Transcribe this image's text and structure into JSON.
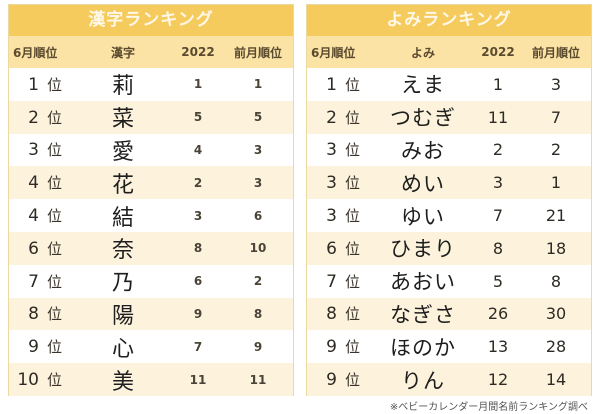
{
  "kanji_ranking": {
    "title": "漢字ランキング",
    "headers": [
      "6月順位",
      "漢字",
      "2022",
      "前月順位"
    ],
    "rows": [
      {
        "rank": "1",
        "unit": "位",
        "name": "莉",
        "y2022": "1",
        "prev": "1"
      },
      {
        "rank": "2",
        "unit": "位",
        "name": "菜",
        "y2022": "5",
        "prev": "5"
      },
      {
        "rank": "3",
        "unit": "位",
        "name": "愛",
        "y2022": "4",
        "prev": "3"
      },
      {
        "rank": "4",
        "unit": "位",
        "name": "花",
        "y2022": "2",
        "prev": "3"
      },
      {
        "rank": "4",
        "unit": "位",
        "name": "結",
        "y2022": "3",
        "prev": "6"
      },
      {
        "rank": "6",
        "unit": "位",
        "name": "奈",
        "y2022": "8",
        "prev": "10"
      },
      {
        "rank": "7",
        "unit": "位",
        "name": "乃",
        "y2022": "6",
        "prev": "2"
      },
      {
        "rank": "8",
        "unit": "位",
        "name": "陽",
        "y2022": "9",
        "prev": "8"
      },
      {
        "rank": "9",
        "unit": "位",
        "name": "心",
        "y2022": "7",
        "prev": "9"
      },
      {
        "rank": "10",
        "unit": "位",
        "name": "美",
        "y2022": "11",
        "prev": "11"
      }
    ]
  },
  "yomi_ranking": {
    "title": "よみランキング",
    "headers": [
      "6月順位",
      "よみ",
      "2022",
      "前月順位"
    ],
    "rows": [
      {
        "rank": "1",
        "unit": "位",
        "name": "えま",
        "y2022": "1",
        "prev": "3"
      },
      {
        "rank": "2",
        "unit": "位",
        "name": "つむぎ",
        "y2022": "11",
        "prev": "7"
      },
      {
        "rank": "3",
        "unit": "位",
        "name": "みお",
        "y2022": "2",
        "prev": "2"
      },
      {
        "rank": "3",
        "unit": "位",
        "name": "めい",
        "y2022": "3",
        "prev": "1"
      },
      {
        "rank": "3",
        "unit": "位",
        "name": "ゆい",
        "y2022": "7",
        "prev": "21"
      },
      {
        "rank": "6",
        "unit": "位",
        "name": "ひまり",
        "y2022": "8",
        "prev": "18"
      },
      {
        "rank": "7",
        "unit": "位",
        "name": "あおい",
        "y2022": "5",
        "prev": "8"
      },
      {
        "rank": "8",
        "unit": "位",
        "name": "なぎさ",
        "y2022": "26",
        "prev": "30"
      },
      {
        "rank": "9",
        "unit": "位",
        "name": "ほのか",
        "y2022": "13",
        "prev": "28"
      },
      {
        "rank": "9",
        "unit": "位",
        "name": "りん",
        "y2022": "12",
        "prev": "14"
      }
    ]
  },
  "footnote": "※ベビーカレンダー月間名前ランキング調べ",
  "colors": {
    "title_bg": "#f6cb5e",
    "header_bg": "#fbe3a6",
    "row_alt_bg": "#fdf3dd",
    "border": "#ecd9a0"
  }
}
